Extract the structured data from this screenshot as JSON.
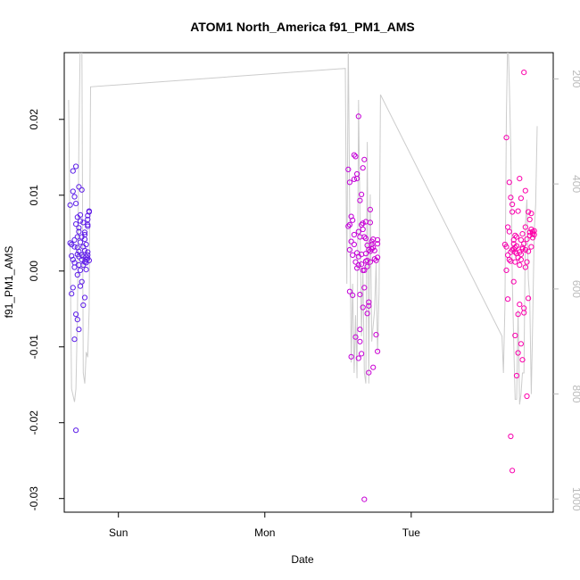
{
  "chart_data": {
    "type": "scatter",
    "title": "ATOM1 North_America f91_PM1_AMS",
    "xlabel": "Date",
    "ylabel": "f91_PM1_AMS",
    "x_ticks": [
      "Sun",
      "Mon",
      "Tue"
    ],
    "x_tick_values": [
      0.0,
      1.0,
      2.0
    ],
    "xlim": [
      -0.37,
      2.97
    ],
    "ylim": [
      -0.0318,
      0.0288
    ],
    "y_ticks": [
      -0.03,
      -0.02,
      -0.01,
      0.0,
      0.01,
      0.02
    ],
    "y_tick_labels": [
      "-0.03",
      "-0.02",
      "-0.01",
      "0.00",
      "0.01",
      "0.02"
    ],
    "right_axis": {
      "ticks": [
        200,
        400,
        600,
        800,
        1000
      ],
      "labels": [
        "200",
        "400",
        "600",
        "800",
        "1000"
      ],
      "lim": [
        1025,
        150
      ],
      "color": "#bbbbbb",
      "reversed": true
    },
    "grid": false,
    "series": [
      {
        "kind": "points",
        "color_gradient": [
          "#5a1fe8",
          "#b200e6",
          "#ff00a8"
        ],
        "x": [
          -0.33,
          -0.33,
          -0.32,
          -0.32,
          -0.32,
          -0.31,
          -0.31,
          -0.31,
          -0.31,
          -0.3,
          -0.3,
          -0.3,
          -0.3,
          -0.3,
          -0.3,
          -0.29,
          -0.29,
          -0.29,
          -0.29,
          -0.29,
          -0.28,
          -0.28,
          -0.28,
          -0.28,
          -0.28,
          -0.28,
          -0.27,
          -0.27,
          -0.27,
          -0.27,
          -0.27,
          -0.27,
          -0.27,
          -0.26,
          -0.26,
          -0.26,
          -0.26,
          -0.26,
          -0.25,
          -0.25,
          -0.25,
          -0.25,
          -0.25,
          -0.24,
          -0.24,
          -0.24,
          -0.24,
          -0.24,
          -0.23,
          -0.23,
          -0.23,
          -0.23,
          -0.23,
          -0.23,
          -0.22,
          -0.22,
          -0.22,
          -0.22,
          -0.22,
          -0.21,
          -0.21,
          -0.21,
          -0.21,
          -0.21,
          -0.21,
          -0.21,
          -0.2,
          -0.2,
          -0.2,
          1.57,
          1.57,
          1.58,
          1.58,
          1.58,
          1.58,
          1.59,
          1.59,
          1.59,
          1.6,
          1.6,
          1.6,
          1.61,
          1.61,
          1.61,
          1.61,
          1.62,
          1.62,
          1.62,
          1.63,
          1.63,
          1.63,
          1.63,
          1.64,
          1.64,
          1.64,
          1.64,
          1.64,
          1.65,
          1.65,
          1.65,
          1.65,
          1.65,
          1.66,
          1.66,
          1.66,
          1.66,
          1.66,
          1.67,
          1.67,
          1.67,
          1.67,
          1.67,
          1.68,
          1.68,
          1.68,
          1.68,
          1.68,
          1.69,
          1.69,
          1.69,
          1.69,
          1.7,
          1.7,
          1.7,
          1.7,
          1.71,
          1.71,
          1.71,
          1.71,
          1.72,
          1.72,
          1.72,
          1.72,
          1.73,
          1.73,
          1.73,
          1.74,
          1.74,
          1.74,
          1.75,
          1.75,
          1.76,
          1.76,
          1.77,
          1.77,
          1.77,
          1.77,
          2.64,
          2.65,
          2.65,
          2.65,
          2.66,
          2.66,
          2.66,
          2.67,
          2.67,
          2.67,
          2.68,
          2.68,
          2.68,
          2.68,
          2.69,
          2.69,
          2.69,
          2.69,
          2.7,
          2.7,
          2.7,
          2.7,
          2.71,
          2.71,
          2.71,
          2.71,
          2.71,
          2.72,
          2.72,
          2.72,
          2.72,
          2.73,
          2.73,
          2.73,
          2.73,
          2.74,
          2.74,
          2.74,
          2.74,
          2.75,
          2.75,
          2.75,
          2.75,
          2.75,
          2.76,
          2.76,
          2.76,
          2.76,
          2.77,
          2.77,
          2.77,
          2.77,
          2.78,
          2.78,
          2.78,
          2.78,
          2.79,
          2.79,
          2.79,
          2.8,
          2.8,
          2.8,
          2.81,
          2.81,
          2.81,
          2.82,
          2.82,
          2.82,
          2.83,
          2.83,
          2.83,
          2.84,
          2.84
        ],
        "y": [
          0.0087,
          0.0037,
          -0.003,
          0.0035,
          0.002,
          0.0105,
          -0.0022,
          0.0015,
          0.0132,
          -0.009,
          0.0005,
          0.0032,
          0.0041,
          0.0098,
          0.0011,
          -0.021,
          0.0089,
          0.0062,
          -0.0057,
          0.0138,
          0.0031,
          0.0045,
          0.0071,
          -0.0064,
          0.0022,
          -0.0005,
          0.0026,
          0.0008,
          0.0052,
          0.0111,
          -0.0077,
          0.0019,
          0.0057,
          0.0038,
          -0.002,
          0.0074,
          0.0066,
          0.0001,
          0.0107,
          -0.0014,
          0.0045,
          0.0015,
          0.0021,
          0.0032,
          -0.0045,
          0.0064,
          0.0019,
          0.0008,
          -0.0035,
          0.0048,
          0.0027,
          0.0042,
          0.0012,
          0.0051,
          0.0002,
          0.0015,
          0.0035,
          0.0011,
          0.0019,
          0.0073,
          0.0059,
          0.0061,
          0.0025,
          0.0021,
          0.0068,
          0.0017,
          0.0014,
          0.0078,
          0.0079,
          0.0134,
          0.0059,
          -0.0027,
          0.0061,
          0.0028,
          0.0117,
          0.0072,
          0.0039,
          -0.0113,
          0.0067,
          -0.0032,
          0.0021,
          0.0153,
          0.0121,
          0.0035,
          0.0048,
          0.0151,
          0.0012,
          -0.0087,
          0.0122,
          0.0004,
          0.0024,
          0.0128,
          -0.0115,
          0.0204,
          0.0052,
          0.0008,
          0.0019,
          0.0093,
          -0.0093,
          0.0045,
          -0.0077,
          -0.0031,
          0.0061,
          0.0101,
          0.0009,
          0.0022,
          -0.0109,
          0.0063,
          0.0001,
          0.0055,
          0.0136,
          -0.0048,
          -0.0022,
          0.0045,
          0.0001,
          0.0147,
          -0.0301,
          0.0013,
          0.0065,
          0.0023,
          0.0043,
          -0.0056,
          0.0014,
          0.0006,
          0.0034,
          0.0028,
          -0.0041,
          -0.0134,
          -0.0046,
          0.0026,
          0.0064,
          0.0081,
          0.0012,
          0.0029,
          0.0039,
          0.0035,
          -0.0127,
          0.0042,
          0.0031,
          0.0016,
          0.0027,
          -0.0084,
          0.0014,
          0.0036,
          0.0018,
          -0.0106,
          0.0041,
          0.0035,
          0.0176,
          0.0001,
          0.0032,
          -0.0037,
          0.0058,
          0.0021,
          0.0117,
          0.0052,
          0.0015,
          -0.0218,
          0.0025,
          0.0013,
          0.0097,
          0.0028,
          -0.0263,
          0.0078,
          0.0088,
          0.0036,
          0.0041,
          -0.0014,
          0.0029,
          0.0047,
          -0.0085,
          0.0012,
          0.0031,
          0.0025,
          0.0045,
          -0.0138,
          0.0033,
          0.0023,
          -0.0108,
          0.0018,
          0.0079,
          -0.0057,
          0.0025,
          -0.0044,
          0.0008,
          0.0122,
          -0.0096,
          0.0041,
          0.0022,
          0.0015,
          0.0096,
          0.0031,
          -0.0117,
          0.0049,
          0.0029,
          0.0262,
          -0.0055,
          0.0036,
          -0.0049,
          0.0028,
          0.0106,
          0.0058,
          0.0005,
          -0.0165,
          0.0012,
          0.0042,
          0.0078,
          0.0026,
          -0.0036,
          0.0047,
          0.0068,
          0.0051,
          0.0032,
          0.0076,
          0.0055,
          0.0049,
          0.0052,
          0.0044,
          0.0053,
          0.0048
        ]
      },
      {
        "kind": "line",
        "color": "#cccccc",
        "axis": "right",
        "x": [
          -0.34,
          -0.33,
          -0.32,
          -0.3,
          -0.29,
          -0.28,
          -0.27,
          -0.26,
          -0.25,
          -0.24,
          -0.23,
          -0.22,
          -0.21,
          -0.2,
          -0.19,
          1.55,
          1.56,
          1.57,
          1.58,
          1.59,
          1.6,
          1.61,
          1.62,
          1.63,
          1.64,
          1.65,
          1.66,
          1.67,
          1.68,
          1.69,
          1.7,
          1.71,
          1.72,
          1.73,
          1.74,
          1.75,
          1.76,
          1.77,
          1.78,
          1.79,
          2.62,
          2.63,
          2.64,
          2.65,
          2.66,
          2.67,
          2.68,
          2.69,
          2.7,
          2.71,
          2.72,
          2.73,
          2.74,
          2.75,
          2.76,
          2.77,
          2.78,
          2.79,
          2.8,
          2.81,
          2.82,
          2.83,
          2.84,
          2.85,
          2.86
        ],
        "y": [
          240,
          520,
          790,
          815,
          790,
          650,
          320,
          120,
          110,
          760,
          780,
          720,
          730,
          640,
          215,
          180,
          590,
          120,
          450,
          740,
          590,
          760,
          650,
          770,
          240,
          460,
          690,
          560,
          760,
          780,
          320,
          780,
          420,
          700,
          670,
          640,
          550,
          720,
          605,
          230,
          690,
          760,
          630,
          270,
          110,
          210,
          330,
          580,
          700,
          810,
          810,
          640,
          820,
          800,
          760,
          760,
          480,
          430,
          580,
          620,
          800,
          660,
          490,
          440,
          290
        ]
      }
    ]
  }
}
